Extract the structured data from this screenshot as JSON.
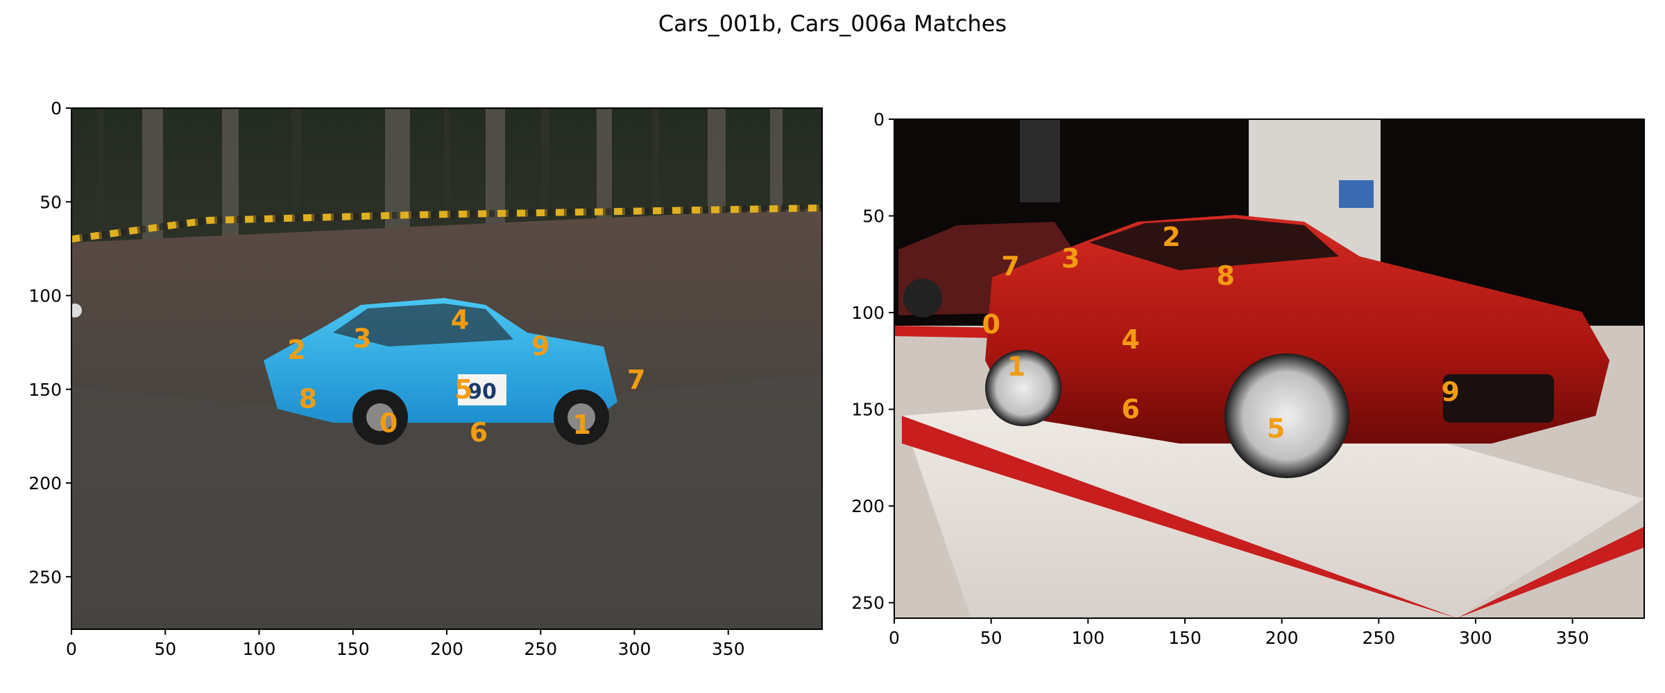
{
  "figure": {
    "title": "Cars_001b, Cars_006a Matches"
  },
  "panels": [
    {
      "name": "left-image-panel",
      "image_description": "blue rally car on a muddy forest track with hazard tape behind",
      "img_width": 400,
      "img_height": 278,
      "xticks": [
        0,
        50,
        100,
        150,
        200,
        250,
        300,
        350
      ],
      "yticks": [
        0,
        50,
        100,
        150,
        200,
        250
      ],
      "keypoints": [
        {
          "label": "0",
          "x": 169,
          "y": 168
        },
        {
          "label": "1",
          "x": 272,
          "y": 169
        },
        {
          "label": "2",
          "x": 120,
          "y": 129
        },
        {
          "label": "3",
          "x": 155,
          "y": 123
        },
        {
          "label": "4",
          "x": 207,
          "y": 113
        },
        {
          "label": "5",
          "x": 209,
          "y": 150
        },
        {
          "label": "6",
          "x": 217,
          "y": 173
        },
        {
          "label": "7",
          "x": 301,
          "y": 145
        },
        {
          "label": "8",
          "x": 126,
          "y": 155
        },
        {
          "label": "9",
          "x": 250,
          "y": 127
        }
      ]
    },
    {
      "name": "right-image-panel",
      "image_description": "red sports car on a white and red display platform in a dark showroom",
      "img_width": 387,
      "img_height": 258,
      "xticks": [
        0,
        50,
        100,
        150,
        200,
        250,
        300,
        350
      ],
      "yticks": [
        0,
        50,
        100,
        150,
        200,
        250
      ],
      "keypoints": [
        {
          "label": "0",
          "x": 50,
          "y": 106
        },
        {
          "label": "1",
          "x": 63,
          "y": 128
        },
        {
          "label": "2",
          "x": 143,
          "y": 61
        },
        {
          "label": "3",
          "x": 91,
          "y": 72
        },
        {
          "label": "4",
          "x": 122,
          "y": 114
        },
        {
          "label": "5",
          "x": 197,
          "y": 160
        },
        {
          "label": "6",
          "x": 122,
          "y": 150
        },
        {
          "label": "7",
          "x": 60,
          "y": 76
        },
        {
          "label": "8",
          "x": 171,
          "y": 81
        },
        {
          "label": "9",
          "x": 287,
          "y": 141
        }
      ]
    }
  ]
}
